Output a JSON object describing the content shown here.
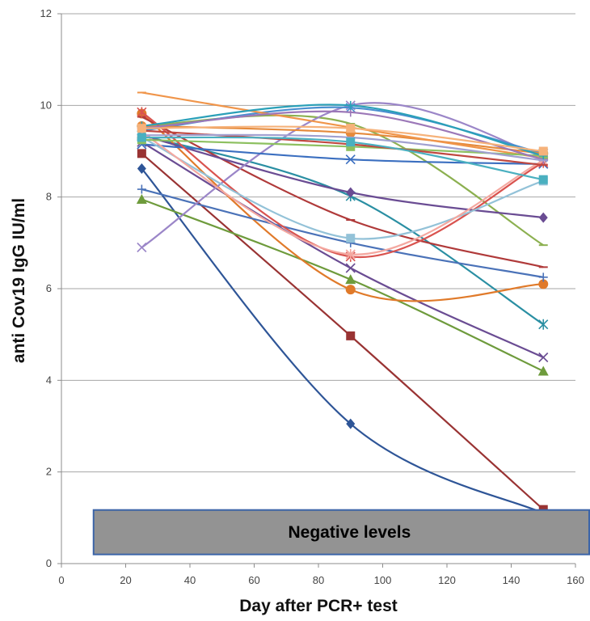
{
  "chart_data": {
    "type": "line",
    "title": "",
    "xlabel": "Day after PCR+ test",
    "ylabel": "anti Cov19 IgG IU/ml",
    "xlim": [
      0,
      160
    ],
    "ylim": [
      0,
      12
    ],
    "x_ticks": [
      0,
      20,
      40,
      60,
      80,
      100,
      120,
      140,
      160
    ],
    "y_ticks": [
      0,
      2,
      4,
      6,
      8,
      10,
      12
    ],
    "grid": "horizontal",
    "legend": "none",
    "annotation": {
      "label": "Negative levels",
      "x_range": [
        10,
        160
      ],
      "y_range": [
        0.2,
        1.17
      ],
      "fill": "#939393",
      "border": "#3b64a8"
    },
    "x": [
      25,
      90,
      150
    ],
    "series": [
      {
        "color": "#2e5597",
        "marker": "diamond",
        "values": [
          8.62,
          3.05,
          1.1
        ]
      },
      {
        "color": "#993333",
        "marker": "square",
        "values": [
          8.95,
          4.97,
          1.18
        ]
      },
      {
        "color": "#6e9b3c",
        "marker": "triangle",
        "values": [
          7.95,
          6.2,
          4.2
        ]
      },
      {
        "color": "#6a4c93",
        "marker": "x",
        "values": [
          9.2,
          6.45,
          4.5
        ]
      },
      {
        "color": "#2a8fa3",
        "marker": "star",
        "values": [
          9.35,
          8.02,
          5.22
        ]
      },
      {
        "color": "#e07a2a",
        "marker": "circle",
        "values": [
          9.82,
          5.98,
          6.1
        ]
      },
      {
        "color": "#4a72b8",
        "marker": "plus",
        "values": [
          8.17,
          7.0,
          6.25
        ]
      },
      {
        "color": "#b03a3a",
        "marker": "dash",
        "values": [
          9.75,
          7.5,
          6.47
        ]
      },
      {
        "color": "#8cb050",
        "marker": "dash",
        "values": [
          9.55,
          9.6,
          6.95
        ]
      },
      {
        "color": "#6a4c93",
        "marker": "diamond",
        "values": [
          9.35,
          8.1,
          7.55
        ]
      },
      {
        "color": "#9b86c8",
        "marker": "x",
        "values": [
          6.9,
          10.0,
          8.88
        ]
      },
      {
        "color": "#4a8fd0",
        "marker": "star",
        "values": [
          9.45,
          9.95,
          8.95
        ]
      },
      {
        "color": "#e58a3c",
        "marker": "circle",
        "values": [
          9.55,
          9.4,
          8.95
        ]
      },
      {
        "color": "#f0954a",
        "marker": "dash",
        "values": [
          10.28,
          9.52,
          8.85
        ]
      },
      {
        "color": "#3b6fc0",
        "marker": "x",
        "values": [
          9.15,
          8.82,
          8.72
        ]
      },
      {
        "color": "#d9534f",
        "marker": "star",
        "values": [
          9.85,
          6.7,
          8.75
        ]
      },
      {
        "color": "#93c2d8",
        "marker": "square",
        "values": [
          9.3,
          7.1,
          8.35
        ]
      },
      {
        "color": "#f4a8a0",
        "marker": "star",
        "values": [
          9.4,
          6.75,
          8.8
        ]
      },
      {
        "color": "#8dc060",
        "marker": "square",
        "values": [
          9.25,
          9.1,
          8.9
        ]
      },
      {
        "color": "#9c78b8",
        "marker": "plus",
        "values": [
          9.5,
          9.85,
          8.82
        ]
      },
      {
        "color": "#2aa0b8",
        "marker": "plus",
        "values": [
          9.55,
          10.0,
          8.9
        ]
      },
      {
        "color": "#c04840",
        "marker": "dash",
        "values": [
          9.45,
          9.15,
          8.7
        ]
      },
      {
        "color": "#f6b27a",
        "marker": "square",
        "values": [
          9.5,
          9.5,
          9.0
        ]
      },
      {
        "color": "#a0a0d0",
        "marker": "dash",
        "values": [
          9.35,
          9.3,
          8.8
        ]
      },
      {
        "color": "#4ab0c0",
        "marker": "square",
        "values": [
          9.3,
          9.2,
          8.38
        ]
      }
    ]
  }
}
